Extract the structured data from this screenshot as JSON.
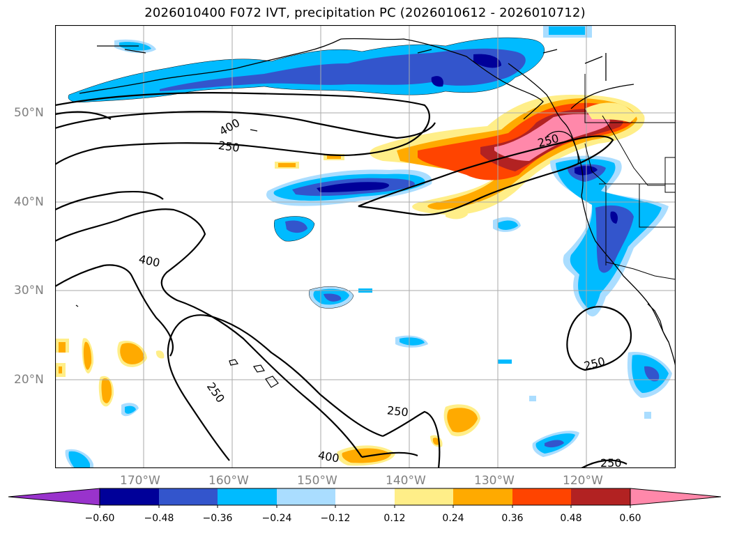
{
  "title": "2026010400 F072 IVT, precipitation PC (2026010612 - 2026010712)",
  "map": {
    "lat_labels": [
      "50°N",
      "40°N",
      "30°N",
      "20°N"
    ],
    "lon_labels": [
      "170°W",
      "160°W",
      "150°W",
      "140°W",
      "130°W",
      "120°W"
    ],
    "contour_labels": [
      "400",
      "250",
      "250",
      "400",
      "250",
      "250",
      "400",
      "250",
      "250"
    ]
  },
  "colorbar": {
    "ticks": [
      "−0.60",
      "−0.48",
      "−0.36",
      "−0.24",
      "−0.12",
      "0.12",
      "0.24",
      "0.36",
      "0.48",
      "0.60"
    ],
    "colors": {
      "under": "#9933cc",
      "bins": [
        "#000099",
        "#3355cc",
        "#00bbff",
        "#aaddff",
        "#ffffff",
        "#ffee88",
        "#ffaa00",
        "#ff4400",
        "#b22222"
      ],
      "over": "#ff88aa"
    }
  }
}
